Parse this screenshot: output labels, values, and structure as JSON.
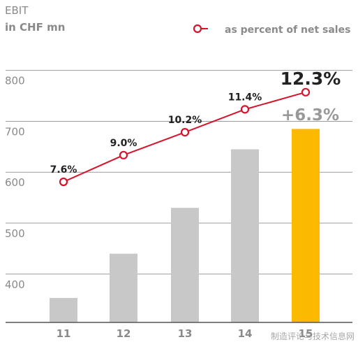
{
  "chart_data": {
    "type": "bar",
    "title": "EBIT",
    "subtitle": "in CHF mn",
    "categories": [
      "11",
      "12",
      "13",
      "14",
      "15"
    ],
    "series": [
      {
        "values": [
          353,
          440,
          530,
          645,
          685
        ]
      },
      {
        "name": "as percent of net sales",
        "type": "line",
        "values": [
          7.6,
          9.0,
          10.2,
          11.4,
          12.3
        ],
        "labels": [
          "7.6%",
          "9.0%",
          "10.2%",
          "11.4%",
          "12.3%"
        ]
      }
    ],
    "ylim": [
      305,
      805
    ],
    "yticks": [
      400,
      500,
      600,
      700,
      800
    ],
    "ytick_labels": [
      "400",
      "500",
      "600",
      "700",
      "800"
    ],
    "grid": true,
    "legend": "top-right",
    "annotation": "+6.3%",
    "colors": {
      "bar": "#c8c8c8",
      "highlight_bar": "#fbb900",
      "line": "#d7132b",
      "grid": "#9b9b9b",
      "label": "#222222",
      "axis_text": "#8a8a8a"
    }
  },
  "watermark": "制造评论与技术信息网"
}
